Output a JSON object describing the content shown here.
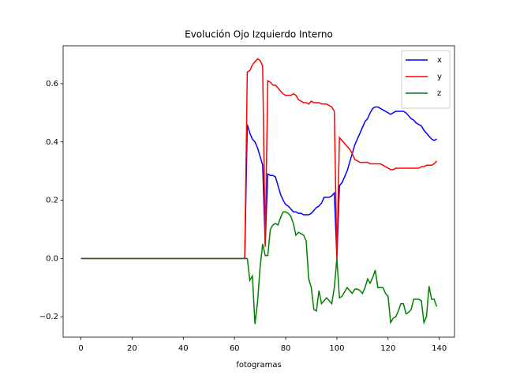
{
  "chart_data": {
    "type": "line",
    "title": "Evolución Ojo Izquierdo Interno",
    "x_label": "fotogramas",
    "x": [
      0,
      1,
      2,
      3,
      4,
      5,
      6,
      7,
      8,
      9,
      10,
      11,
      12,
      13,
      14,
      15,
      16,
      17,
      18,
      19,
      20,
      21,
      22,
      23,
      24,
      25,
      26,
      27,
      28,
      29,
      30,
      31,
      32,
      33,
      34,
      35,
      36,
      37,
      38,
      39,
      40,
      41,
      42,
      43,
      44,
      45,
      46,
      47,
      48,
      49,
      50,
      51,
      52,
      53,
      54,
      55,
      56,
      57,
      58,
      59,
      60,
      61,
      62,
      63,
      64,
      65,
      66,
      67,
      68,
      69,
      70,
      71,
      72,
      73,
      74,
      75,
      76,
      77,
      78,
      79,
      80,
      81,
      82,
      83,
      84,
      85,
      86,
      87,
      88,
      89,
      90,
      91,
      92,
      93,
      94,
      95,
      96,
      97,
      98,
      99,
      100,
      101,
      102,
      103,
      104,
      105,
      106,
      107,
      108,
      109,
      110,
      111,
      112,
      113,
      114,
      115,
      116,
      117,
      118,
      119,
      120,
      121,
      122,
      123,
      124,
      125,
      126,
      127,
      128,
      129,
      130,
      131,
      132,
      133,
      134,
      135,
      136,
      137,
      138,
      139
    ],
    "series": [
      {
        "name": "x",
        "color": "#0000ff",
        "values": [
          0,
          0,
          0,
          0,
          0,
          0,
          0,
          0,
          0,
          0,
          0,
          0,
          0,
          0,
          0,
          0,
          0,
          0,
          0,
          0,
          0,
          0,
          0,
          0,
          0,
          0,
          0,
          0,
          0,
          0,
          0,
          0,
          0,
          0,
          0,
          0,
          0,
          0,
          0,
          0,
          0,
          0,
          0,
          0,
          0,
          0,
          0,
          0,
          0,
          0,
          0,
          0,
          0,
          0,
          0,
          0,
          0,
          0,
          0,
          0,
          0,
          0,
          0,
          0,
          0,
          0.46,
          0.43,
          0.41,
          0.4,
          0.38,
          0.35,
          0.32,
          0.05,
          0.29,
          0.285,
          0.285,
          0.28,
          0.25,
          0.22,
          0.2,
          0.185,
          0.18,
          0.17,
          0.16,
          0.16,
          0.155,
          0.155,
          0.15,
          0.15,
          0.15,
          0.155,
          0.165,
          0.175,
          0.18,
          0.19,
          0.21,
          0.21,
          0.21,
          0.215,
          0.225,
          0.0,
          0.25,
          0.26,
          0.28,
          0.3,
          0.33,
          0.36,
          0.39,
          0.41,
          0.43,
          0.45,
          0.47,
          0.48,
          0.5,
          0.515,
          0.52,
          0.52,
          0.515,
          0.51,
          0.505,
          0.5,
          0.495,
          0.5,
          0.505,
          0.505,
          0.505,
          0.505,
          0.5,
          0.49,
          0.48,
          0.475,
          0.465,
          0.46,
          0.455,
          0.44,
          0.43,
          0.42,
          0.41,
          0.405,
          0.41
        ]
      },
      {
        "name": "y",
        "color": "#ff0000",
        "values": [
          0,
          0,
          0,
          0,
          0,
          0,
          0,
          0,
          0,
          0,
          0,
          0,
          0,
          0,
          0,
          0,
          0,
          0,
          0,
          0,
          0,
          0,
          0,
          0,
          0,
          0,
          0,
          0,
          0,
          0,
          0,
          0,
          0,
          0,
          0,
          0,
          0,
          0,
          0,
          0,
          0,
          0,
          0,
          0,
          0,
          0,
          0,
          0,
          0,
          0,
          0,
          0,
          0,
          0,
          0,
          0,
          0,
          0,
          0,
          0,
          0,
          0,
          0,
          0,
          0,
          0.64,
          0.645,
          0.665,
          0.675,
          0.685,
          0.68,
          0.66,
          0.04,
          0.61,
          0.605,
          0.595,
          0.595,
          0.585,
          0.575,
          0.565,
          0.56,
          0.56,
          0.56,
          0.565,
          0.56,
          0.545,
          0.54,
          0.535,
          0.535,
          0.53,
          0.54,
          0.535,
          0.535,
          0.535,
          0.53,
          0.53,
          0.53,
          0.525,
          0.52,
          0.505,
          0.0,
          0.415,
          0.405,
          0.395,
          0.385,
          0.375,
          0.36,
          0.34,
          0.335,
          0.33,
          0.33,
          0.33,
          0.33,
          0.325,
          0.325,
          0.325,
          0.325,
          0.325,
          0.32,
          0.315,
          0.31,
          0.305,
          0.305,
          0.31,
          0.31,
          0.31,
          0.31,
          0.31,
          0.31,
          0.31,
          0.31,
          0.31,
          0.31,
          0.315,
          0.315,
          0.32,
          0.32,
          0.32,
          0.325,
          0.335
        ]
      },
      {
        "name": "z",
        "color": "#008000",
        "values": [
          0,
          0,
          0,
          0,
          0,
          0,
          0,
          0,
          0,
          0,
          0,
          0,
          0,
          0,
          0,
          0,
          0,
          0,
          0,
          0,
          0,
          0,
          0,
          0,
          0,
          0,
          0,
          0,
          0,
          0,
          0,
          0,
          0,
          0,
          0,
          0,
          0,
          0,
          0,
          0,
          0,
          0,
          0,
          0,
          0,
          0,
          0,
          0,
          0,
          0,
          0,
          0,
          0,
          0,
          0,
          0,
          0,
          0,
          0,
          0,
          0,
          0,
          0,
          0,
          0,
          0.0,
          -0.075,
          -0.06,
          -0.225,
          -0.15,
          -0.03,
          0.05,
          0.01,
          0.01,
          0.1,
          0.115,
          0.12,
          0.115,
          0.14,
          0.16,
          0.16,
          0.155,
          0.145,
          0.12,
          0.08,
          0.09,
          0.085,
          0.08,
          0.06,
          -0.07,
          -0.1,
          -0.175,
          -0.18,
          -0.11,
          -0.155,
          -0.145,
          -0.135,
          -0.145,
          -0.155,
          -0.1,
          0.0,
          -0.135,
          -0.13,
          -0.115,
          -0.1,
          -0.11,
          -0.12,
          -0.105,
          -0.105,
          -0.11,
          -0.12,
          -0.1,
          -0.07,
          -0.085,
          -0.065,
          -0.04,
          -0.1,
          -0.1,
          -0.1,
          -0.12,
          -0.13,
          -0.22,
          -0.205,
          -0.2,
          -0.18,
          -0.155,
          -0.155,
          -0.19,
          -0.185,
          -0.175,
          -0.14,
          -0.14,
          -0.14,
          -0.145,
          -0.22,
          -0.2,
          -0.095,
          -0.14,
          -0.14,
          -0.165
        ]
      }
    ],
    "xlim": [
      -6.95,
      145.95
    ],
    "xticks": [
      0,
      20,
      40,
      60,
      80,
      100,
      120,
      140
    ],
    "ylim": [
      -0.27,
      0.73
    ],
    "yticks": [
      {
        "value": -0.2,
        "label": "−0.2"
      },
      {
        "value": 0,
        "label": "0.0"
      },
      0.2,
      0.4,
      0.6
    ],
    "legend": "upper right",
    "grid": false
  }
}
